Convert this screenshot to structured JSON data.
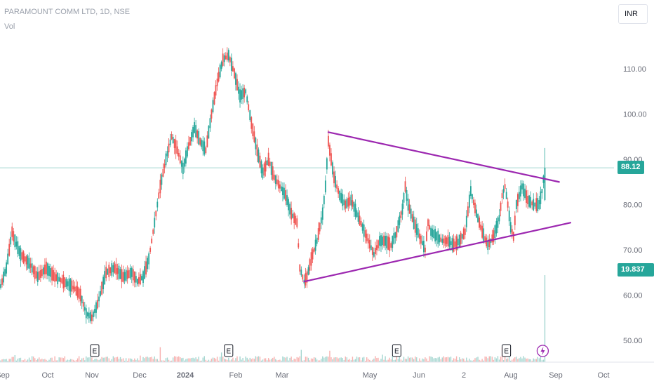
{
  "header": {
    "title": "PARAMOUNT COMM LTD, 1D, NSE",
    "volume_label": "Vol",
    "currency_button": "INR"
  },
  "colors": {
    "up": "#26a69a",
    "down": "#ef5350",
    "trendline": "#9c27b0",
    "price_line": "#a5d6d0",
    "volume_up": "#a5d6d0",
    "volume_down": "#f7b2b0"
  },
  "badges": {
    "last_price": "88.12",
    "last_volume": "19.837 M"
  },
  "event_marker": "E",
  "chart_data": {
    "type": "candlestick",
    "title": "PARAMOUNT COMM LTD, 1D, NSE",
    "x_axis_labels": [
      "Sep",
      "Oct",
      "Nov",
      "Dec",
      "2024",
      "Feb",
      "Mar",
      "May",
      "Jun",
      "2",
      "Aug",
      "Sep",
      "Oct"
    ],
    "y_axis_ticks": [
      50,
      60,
      70,
      80,
      90,
      100,
      110
    ],
    "y_axis_labels": [
      "50.00",
      "60.00",
      "70.00",
      "80.00",
      "90.00",
      "100.00",
      "110.00"
    ],
    "ylim": [
      45,
      120
    ],
    "last_price": 88.12,
    "last_volume_m": 19.837,
    "price_keypoints": [
      [
        0,
        62
      ],
      [
        2,
        64
      ],
      [
        4,
        66
      ],
      [
        6,
        70
      ],
      [
        8,
        74
      ],
      [
        10,
        72
      ],
      [
        14,
        69
      ],
      [
        20,
        67
      ],
      [
        26,
        64
      ],
      [
        32,
        66
      ],
      [
        38,
        64
      ],
      [
        44,
        63
      ],
      [
        50,
        62
      ],
      [
        56,
        60
      ],
      [
        60,
        56
      ],
      [
        64,
        55
      ],
      [
        68,
        58
      ],
      [
        74,
        65
      ],
      [
        80,
        66
      ],
      [
        86,
        64
      ],
      [
        92,
        65
      ],
      [
        96,
        63
      ],
      [
        100,
        64
      ],
      [
        104,
        68
      ],
      [
        108,
        76
      ],
      [
        112,
        84
      ],
      [
        116,
        90
      ],
      [
        120,
        95
      ],
      [
        124,
        92
      ],
      [
        128,
        88
      ],
      [
        132,
        93
      ],
      [
        136,
        97
      ],
      [
        140,
        94
      ],
      [
        144,
        92
      ],
      [
        148,
        100
      ],
      [
        152,
        107
      ],
      [
        156,
        112
      ],
      [
        160,
        113
      ],
      [
        164,
        109
      ],
      [
        168,
        104
      ],
      [
        172,
        105
      ],
      [
        176,
        98
      ],
      [
        180,
        92
      ],
      [
        184,
        87
      ],
      [
        188,
        90
      ],
      [
        192,
        86
      ],
      [
        196,
        84
      ],
      [
        200,
        82
      ],
      [
        204,
        78
      ],
      [
        208,
        76
      ],
      [
        210,
        66
      ],
      [
        213,
        63
      ],
      [
        215,
        64
      ],
      [
        218,
        68
      ],
      [
        222,
        72
      ],
      [
        226,
        78
      ],
      [
        228,
        84
      ],
      [
        230,
        94
      ],
      [
        232,
        90
      ],
      [
        234,
        86
      ],
      [
        238,
        82
      ],
      [
        242,
        80
      ],
      [
        246,
        81
      ],
      [
        250,
        78
      ],
      [
        254,
        75
      ],
      [
        258,
        72
      ],
      [
        262,
        69
      ],
      [
        266,
        72
      ],
      [
        270,
        72
      ],
      [
        274,
        71
      ],
      [
        278,
        74
      ],
      [
        282,
        79
      ],
      [
        284,
        84
      ],
      [
        286,
        80
      ],
      [
        290,
        76
      ],
      [
        294,
        73
      ],
      [
        298,
        70
      ],
      [
        300,
        76
      ],
      [
        302,
        74
      ],
      [
        306,
        73
      ],
      [
        310,
        72
      ],
      [
        314,
        72
      ],
      [
        318,
        71
      ],
      [
        322,
        72
      ],
      [
        326,
        74
      ],
      [
        330,
        83
      ],
      [
        334,
        78
      ],
      [
        338,
        74
      ],
      [
        342,
        71
      ],
      [
        346,
        73
      ],
      [
        350,
        77
      ],
      [
        352,
        82
      ],
      [
        354,
        84
      ],
      [
        356,
        80
      ],
      [
        358,
        75
      ],
      [
        360,
        73
      ],
      [
        362,
        80
      ],
      [
        366,
        84
      ],
      [
        370,
        81
      ],
      [
        374,
        80
      ],
      [
        378,
        80
      ],
      [
        380,
        83
      ],
      [
        382,
        88.12
      ]
    ],
    "volume_spikes": [
      [
        10,
        1.6
      ],
      [
        98,
        1.5
      ],
      [
        112,
        3.4
      ],
      [
        155,
        2.2
      ],
      [
        211,
        2.8
      ],
      [
        231,
        2.6
      ],
      [
        268,
        1.7
      ],
      [
        352,
        3.4
      ],
      [
        357,
        3.9
      ],
      [
        382,
        19.837
      ]
    ],
    "trendlines": [
      {
        "from": [
          213,
          63
        ],
        "to": [
          400,
          76
        ]
      },
      {
        "from": [
          230,
          96
        ],
        "to": [
          392,
          85
        ]
      }
    ],
    "earnings_markers_at_bar": [
      66,
      160,
      278,
      355
    ]
  }
}
